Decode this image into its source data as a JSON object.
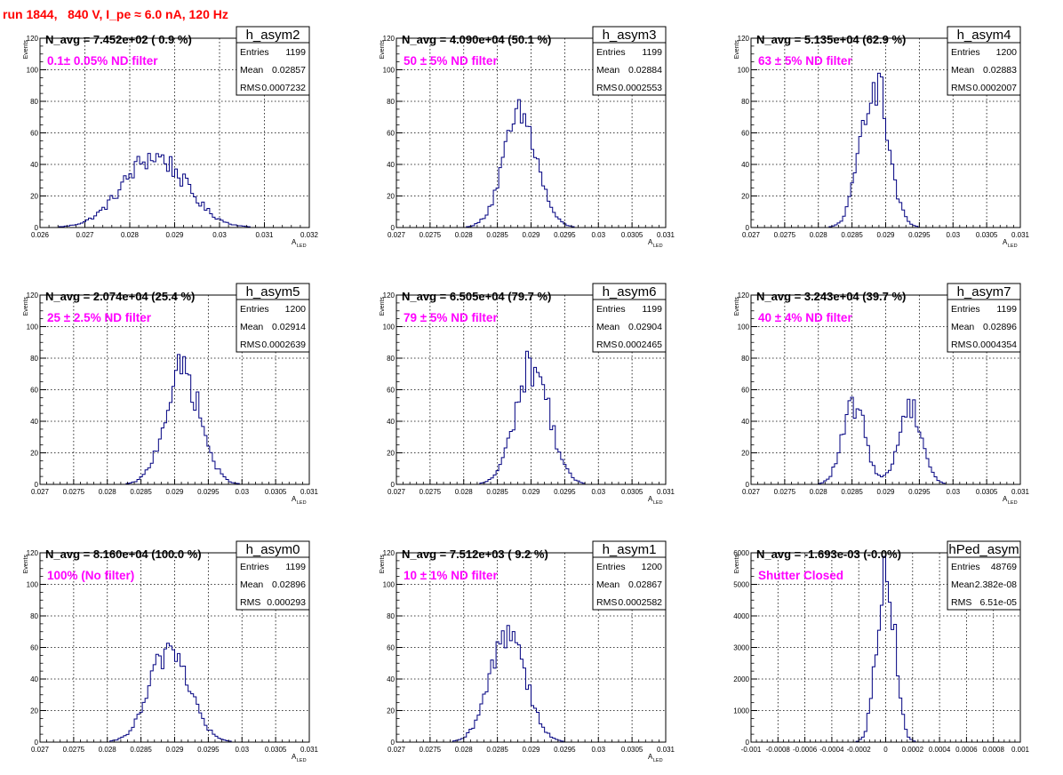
{
  "page": {
    "title": "run 1844,   840 V, I_pe ≈ 6.0 nA, 120 Hz"
  },
  "stats_labels": {
    "entries": "Entries",
    "mean": "Mean",
    "rms": "RMS"
  },
  "axis_labels": {
    "y": "Events",
    "x_main": "A",
    "x_sub": "LED"
  },
  "colors": {
    "histogram": "#000080",
    "annotation": "#ff00ff",
    "title": "#ff0000",
    "grid": "#000000"
  },
  "chart_data": [
    {
      "type": "histogram",
      "name": "h_asym2",
      "navg": "N_avg = 7.452e+02 ( 0.9 %)",
      "annotation": "0.1± 0.05% ND filter",
      "entries": "1199",
      "mean": "0.02857",
      "rms": "0.0007232",
      "xlim": [
        0.026,
        0.032
      ],
      "ylim": [
        0,
        120
      ],
      "xticks": [
        0.026,
        0.027,
        0.028,
        0.029,
        0.03,
        0.031,
        0.032
      ],
      "xtick_labels": [
        "0.026",
        "0.027",
        "0.028",
        "0.029",
        "0.03",
        "0.031",
        "0.032"
      ],
      "yticks": [
        0,
        20,
        40,
        60,
        80,
        100,
        120
      ],
      "ytick_labels": [
        "0",
        "20",
        "40",
        "60",
        "80",
        "100",
        "120"
      ],
      "xlabel": "A",
      "xlabel_sub": "LED",
      "peaks": [
        [
          0.02855,
          0.0007,
          45
        ]
      ]
    },
    {
      "type": "histogram",
      "name": "h_asym3",
      "navg": "N_avg = 4.090e+04 (50.1 %)",
      "annotation": "50 ± 5% ND filter",
      "entries": "1199",
      "mean": "0.02884",
      "rms": "0.0002553",
      "xlim": [
        0.027,
        0.031
      ],
      "ylim": [
        0,
        120
      ],
      "xticks": [
        0.027,
        0.0275,
        0.028,
        0.0285,
        0.029,
        0.0295,
        0.03,
        0.0305,
        0.031
      ],
      "xtick_labels": [
        "0.027",
        "0.0275",
        "0.028",
        "0.0285",
        "0.029",
        "0.0295",
        "0.03",
        "0.0305",
        "0.031"
      ],
      "yticks": [
        0,
        20,
        40,
        60,
        80,
        100,
        120
      ],
      "ytick_labels": [
        "0",
        "20",
        "40",
        "60",
        "80",
        "100",
        "120"
      ],
      "xlabel": "A",
      "xlabel_sub": "LED",
      "peaks": [
        [
          0.02884,
          0.00025,
          70
        ]
      ]
    },
    {
      "type": "histogram",
      "name": "h_asym4",
      "navg": "N_avg = 5.135e+04 (62.9 %)",
      "annotation": "63 ± 5% ND filter",
      "entries": "1200",
      "mean": "0.02883",
      "rms": "0.0002007",
      "xlim": [
        0.027,
        0.031
      ],
      "ylim": [
        0,
        120
      ],
      "xticks": [
        0.027,
        0.0275,
        0.028,
        0.0285,
        0.029,
        0.0295,
        0.03,
        0.0305,
        0.031
      ],
      "xtick_labels": [
        "0.027",
        "0.0275",
        "0.028",
        "0.0285",
        "0.029",
        "0.0295",
        "0.03",
        "0.0305",
        "0.031"
      ],
      "yticks": [
        0,
        20,
        40,
        60,
        80,
        100,
        120
      ],
      "ytick_labels": [
        "0",
        "20",
        "40",
        "60",
        "80",
        "100",
        "120"
      ],
      "xlabel": "A",
      "xlabel_sub": "LED",
      "peaks": [
        [
          0.02883,
          0.0002,
          95
        ]
      ]
    },
    {
      "type": "histogram",
      "name": "h_asym5",
      "navg": "N_avg = 2.074e+04 (25.4 %)",
      "annotation": "25 ± 2.5% ND filter",
      "entries": "1200",
      "mean": "0.02914",
      "rms": "0.0002639",
      "xlim": [
        0.027,
        0.031
      ],
      "ylim": [
        0,
        120
      ],
      "xticks": [
        0.027,
        0.0275,
        0.028,
        0.0285,
        0.029,
        0.0295,
        0.03,
        0.0305,
        0.031
      ],
      "xtick_labels": [
        "0.027",
        "0.0275",
        "0.028",
        "0.0285",
        "0.029",
        "0.0295",
        "0.03",
        "0.0305",
        "0.031"
      ],
      "yticks": [
        0,
        20,
        40,
        60,
        80,
        100,
        120
      ],
      "ytick_labels": [
        "0",
        "20",
        "40",
        "60",
        "80",
        "100",
        "120"
      ],
      "xlabel": "A",
      "xlabel_sub": "LED",
      "peaks": [
        [
          0.02912,
          0.00026,
          72
        ]
      ]
    },
    {
      "type": "histogram",
      "name": "h_asym6",
      "navg": "N_avg = 6.505e+04 (79.7 %)",
      "annotation": "79 ± 5% ND filter",
      "entries": "1199",
      "mean": "0.02904",
      "rms": "0.0002465",
      "xlim": [
        0.027,
        0.031
      ],
      "ylim": [
        0,
        120
      ],
      "xticks": [
        0.027,
        0.0275,
        0.028,
        0.0285,
        0.029,
        0.0295,
        0.03,
        0.0305,
        0.031
      ],
      "xtick_labels": [
        "0.027",
        "0.0275",
        "0.028",
        "0.0285",
        "0.029",
        "0.0295",
        "0.03",
        "0.0305",
        "0.031"
      ],
      "yticks": [
        0,
        20,
        40,
        60,
        80,
        100,
        120
      ],
      "ytick_labels": [
        "0",
        "20",
        "40",
        "60",
        "80",
        "100",
        "120"
      ],
      "xlabel": "A",
      "xlabel_sub": "LED",
      "peaks": [
        [
          0.02902,
          0.00025,
          76
        ]
      ]
    },
    {
      "type": "histogram",
      "name": "h_asym7",
      "navg": "N_avg = 3.243e+04 (39.7 %)",
      "annotation": "40 ± 4% ND filter",
      "entries": "1199",
      "mean": "0.02896",
      "rms": "0.0004354",
      "xlim": [
        0.027,
        0.031
      ],
      "ylim": [
        0,
        120
      ],
      "xticks": [
        0.027,
        0.0275,
        0.028,
        0.0285,
        0.029,
        0.0295,
        0.03,
        0.0305,
        0.031
      ],
      "xtick_labels": [
        "0.027",
        "0.0275",
        "0.028",
        "0.0285",
        "0.029",
        "0.0295",
        "0.03",
        "0.0305",
        "0.031"
      ],
      "yticks": [
        0,
        20,
        40,
        60,
        80,
        100,
        120
      ],
      "ytick_labels": [
        "0",
        "20",
        "40",
        "60",
        "80",
        "100",
        "120"
      ],
      "xlabel": "A",
      "xlabel_sub": "LED",
      "peaks": [
        [
          0.02853,
          0.00017,
          50
        ],
        [
          0.02937,
          0.00017,
          50
        ]
      ]
    },
    {
      "type": "histogram",
      "name": "h_asym0",
      "navg": "N_avg = 8.160e+04 (100.0 %)",
      "annotation": "100% (No filter)",
      "entries": "1199",
      "mean": "0.02896",
      "rms": "0.000293",
      "xlim": [
        0.027,
        0.031
      ],
      "ylim": [
        0,
        120
      ],
      "xticks": [
        0.027,
        0.0275,
        0.028,
        0.0285,
        0.029,
        0.0295,
        0.03,
        0.0305,
        0.031
      ],
      "xtick_labels": [
        "0.027",
        "0.0275",
        "0.028",
        "0.0285",
        "0.029",
        "0.0295",
        "0.03",
        "0.0305",
        "0.031"
      ],
      "yticks": [
        0,
        20,
        40,
        60,
        80,
        100,
        120
      ],
      "ytick_labels": [
        "0",
        "20",
        "40",
        "60",
        "80",
        "100",
        "120"
      ],
      "xlabel": "A",
      "xlabel_sub": "LED",
      "peaks": [
        [
          0.02893,
          0.00029,
          60
        ]
      ]
    },
    {
      "type": "histogram",
      "name": "h_asym1",
      "navg": "N_avg = 7.512e+03 ( 9.2 %)",
      "annotation": "10 ± 1% ND filter",
      "entries": "1200",
      "mean": "0.02867",
      "rms": "0.0002582",
      "xlim": [
        0.027,
        0.031
      ],
      "ylim": [
        0,
        120
      ],
      "xticks": [
        0.027,
        0.0275,
        0.028,
        0.0285,
        0.029,
        0.0295,
        0.03,
        0.0305,
        0.031
      ],
      "xtick_labels": [
        "0.027",
        "0.0275",
        "0.028",
        "0.0285",
        "0.029",
        "0.0295",
        "0.03",
        "0.0305",
        "0.031"
      ],
      "yticks": [
        0,
        20,
        40,
        60,
        80,
        100,
        120
      ],
      "ytick_labels": [
        "0",
        "20",
        "40",
        "60",
        "80",
        "100",
        "120"
      ],
      "xlabel": "A",
      "xlabel_sub": "LED",
      "peaks": [
        [
          0.02866,
          0.00026,
          72
        ]
      ]
    },
    {
      "type": "histogram",
      "name": "hPed_asym",
      "navg": "N_avg = -1.693e-03 (-0.0%)",
      "annotation": "Shutter Closed",
      "entries": "48769",
      "mean": "2.382e-08",
      "rms": "6.51e-05",
      "xlim": [
        -0.001,
        0.001
      ],
      "ylim": [
        0,
        6000
      ],
      "xticks": [
        -0.001,
        -0.0008,
        -0.0006,
        -0.0004,
        -0.0002,
        0,
        0.0002,
        0.0004,
        0.0006,
        0.0008,
        0.001
      ],
      "xtick_labels": [
        "-0.001",
        "-0.0008",
        "-0.0006",
        "-0.0004",
        "-0.0002",
        "0",
        "0.0002",
        "0.0004",
        "0.0006",
        "0.0008",
        "0.001"
      ],
      "yticks": [
        0,
        1000,
        2000,
        3000,
        4000,
        5000,
        6000
      ],
      "ytick_labels": [
        "0",
        "1000",
        "2000",
        "3000",
        "4000",
        "5000",
        "6000"
      ],
      "xlabel": "",
      "xlabel_sub": "",
      "peaks": [
        [
          0.0,
          6.5e-05,
          5750
        ]
      ]
    }
  ]
}
